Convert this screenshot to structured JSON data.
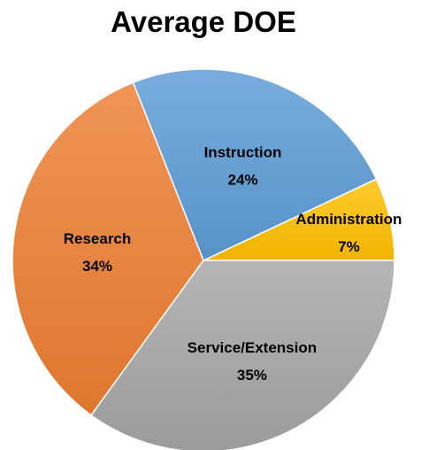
{
  "chart_data": {
    "type": "pie",
    "title": "Average DOE",
    "categories": [
      "Administration",
      "Instruction",
      "Research",
      "Service/Extension"
    ],
    "values": [
      7,
      24,
      34,
      35
    ],
    "value_labels": [
      "7%",
      "24%",
      "34%",
      "35%"
    ],
    "colors": {
      "Administration": "#ffc000",
      "Instruction": "#5b9bd5",
      "Research": "#ed7d31",
      "Service/Extension": "#a5a5a5"
    },
    "legend": "none",
    "data_labels": "inside"
  }
}
